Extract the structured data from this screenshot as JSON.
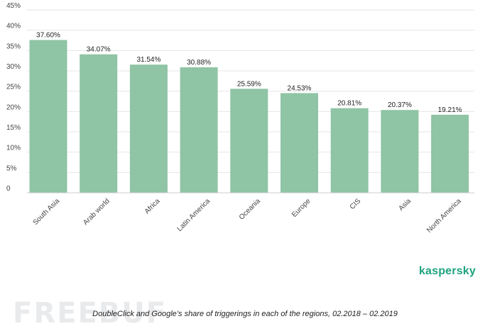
{
  "chart_data": {
    "type": "bar",
    "categories": [
      "South Asia",
      "Arab world",
      "Africa",
      "Latin America",
      "Oceania",
      "Europe",
      "CIS",
      "Asia",
      "North America"
    ],
    "values": [
      37.6,
      34.07,
      31.54,
      30.88,
      25.59,
      24.53,
      20.81,
      20.37,
      19.21
    ],
    "value_labels": [
      "37.60%",
      "34.07%",
      "31.54%",
      "30.88%",
      "25.59%",
      "24.53%",
      "20.81%",
      "20.37%",
      "19.21%"
    ],
    "y_ticks": [
      0,
      5,
      10,
      15,
      20,
      25,
      30,
      35,
      40,
      45
    ],
    "y_tick_labels": [
      "0",
      "5%",
      "10%",
      "15%",
      "20%",
      "25%",
      "30%",
      "35%",
      "40%",
      "45%"
    ],
    "ylim": [
      0,
      45
    ],
    "grid": true,
    "bar_color": "#8fc4a5",
    "title": "",
    "xlabel": "",
    "ylabel": ""
  },
  "brand": "kaspersky",
  "brand_color": "#1fa37f",
  "watermark": "FREEBUF",
  "caption": "DoubleClick and Google’s share of triggerings in each of the regions, 02.2018 – 02.2019"
}
